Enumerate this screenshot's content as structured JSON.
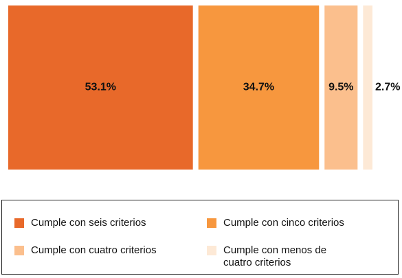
{
  "chart_data": {
    "type": "stacked_bar",
    "series": [
      {
        "name": "Cumple con seis criterios",
        "color": "#e8692a",
        "values": [
          53.1
        ],
        "value_labels": [
          "53.1%"
        ]
      },
      {
        "name": "Cumple con cinco criterios",
        "color": "#f7973e",
        "values": [
          34.7
        ],
        "value_labels": [
          "34.7%"
        ]
      },
      {
        "name": "Cumple con cuatro criterios",
        "color": "#fbbf8d",
        "values": [
          9.5
        ],
        "value_labels": [
          "9.5%"
        ]
      },
      {
        "name": "Cumple con menos de cuatro criterios",
        "color": "#fde9d6",
        "values": [
          2.7
        ],
        "value_labels": [
          "2.7%"
        ]
      }
    ],
    "legend": "bottom"
  }
}
